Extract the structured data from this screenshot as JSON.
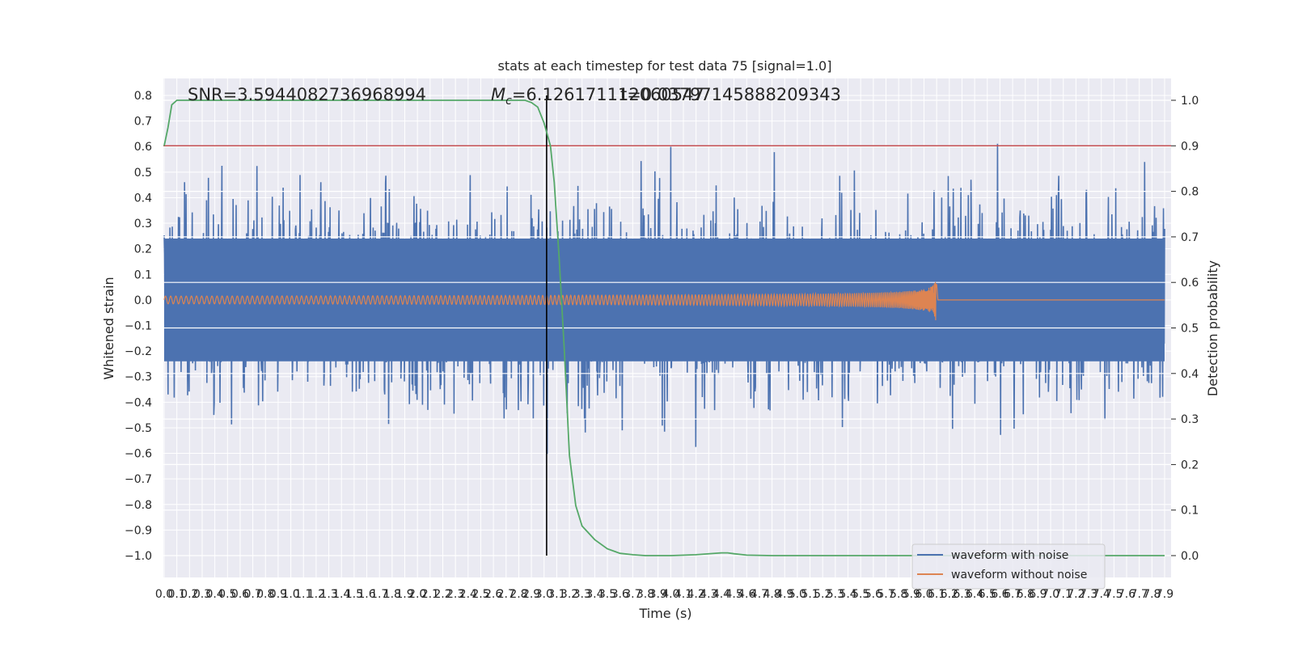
{
  "chart_data": {
    "type": "line",
    "title": "stats at each timestep for test data 75 [signal=1.0]",
    "xlabel": "Time (s)",
    "ylabel_left": "Whitened strain",
    "ylabel_right": "Detection probability",
    "xlim": [
      0.0,
      7.9
    ],
    "ylim_left": [
      -1.0,
      0.8
    ],
    "ylim_right": [
      0.0,
      1.0
    ],
    "x_tick_step": 0.1,
    "left_ticks": [
      0.8,
      0.7,
      0.6,
      0.5,
      0.4,
      0.3,
      0.2,
      0.1,
      0.0,
      -0.1,
      -0.2,
      -0.3,
      -0.4,
      -0.5,
      -0.6,
      -0.7,
      -0.8,
      -0.9,
      -1.0
    ],
    "left_tick_labels": [
      "0.8",
      "0.7",
      "0.6",
      "0.5",
      "0.4",
      "0.3",
      "0.2",
      "0.1",
      "0.0",
      "−0.1",
      "−0.2",
      "−0.3",
      "−0.4",
      "−0.5",
      "−0.6",
      "−0.7",
      "−0.8",
      "−0.9",
      "−1.0"
    ],
    "right_ticks": [
      1.0,
      0.9,
      0.8,
      0.7,
      0.6,
      0.5,
      0.4,
      0.3,
      0.2,
      0.1,
      0.0
    ],
    "right_tick_labels": [
      "1.0",
      "0.9",
      "0.8",
      "0.7",
      "0.6",
      "0.5",
      "0.4",
      "0.3",
      "0.2",
      "0.1",
      "0.0"
    ],
    "threshold": 0.9,
    "event_time": 3.02,
    "merger_time": 6.1,
    "grid": true,
    "legend_position": "lower-right",
    "series": [
      {
        "name": "waveform with noise",
        "color": "#4c72b0",
        "axis": "left",
        "kind": "noise",
        "amplitude_rms": 0.19,
        "peak_range": [
          -1.0,
          0.78
        ]
      },
      {
        "name": "waveform without noise",
        "color": "#dd8452",
        "axis": "left",
        "kind": "chirp",
        "start": 0.0,
        "merger": 6.1,
        "peak_amplitude": 0.095
      },
      {
        "name": "",
        "color": "#55a868",
        "axis": "right",
        "kind": "probability",
        "x": [
          0.0,
          0.03,
          0.06,
          0.1,
          0.15,
          0.3,
          1.0,
          2.0,
          2.7,
          2.8,
          2.85,
          2.9,
          2.95,
          3.0,
          3.05,
          3.08,
          3.12,
          3.16,
          3.2,
          3.25,
          3.3,
          3.4,
          3.5,
          3.6,
          3.7,
          3.8,
          4.0,
          4.2,
          4.4,
          4.45,
          4.5,
          4.6,
          4.8,
          5.2,
          6.0,
          7.9
        ],
        "y": [
          0.9,
          0.94,
          0.99,
          1.0,
          1.0,
          1.0,
          1.0,
          1.0,
          1.0,
          1.0,
          1.0,
          0.995,
          0.985,
          0.95,
          0.9,
          0.82,
          0.65,
          0.45,
          0.22,
          0.11,
          0.065,
          0.035,
          0.015,
          0.005,
          0.002,
          0.0,
          0.0,
          0.002,
          0.006,
          0.006,
          0.004,
          0.001,
          0.0,
          0.0,
          0.0,
          0.0
        ]
      }
    ],
    "annotations": {
      "snr": "SNR=3.5944082736968994",
      "mc_prefix": "M",
      "mc_sub": "c",
      "mc_value": "=6.126171112060547",
      "t": "t=0.03797145888209343"
    }
  },
  "colors": {
    "axes_background": "#eaeaf2",
    "grid": "#ffffff",
    "threshold": "#c44e52",
    "event_line": "#000000"
  }
}
